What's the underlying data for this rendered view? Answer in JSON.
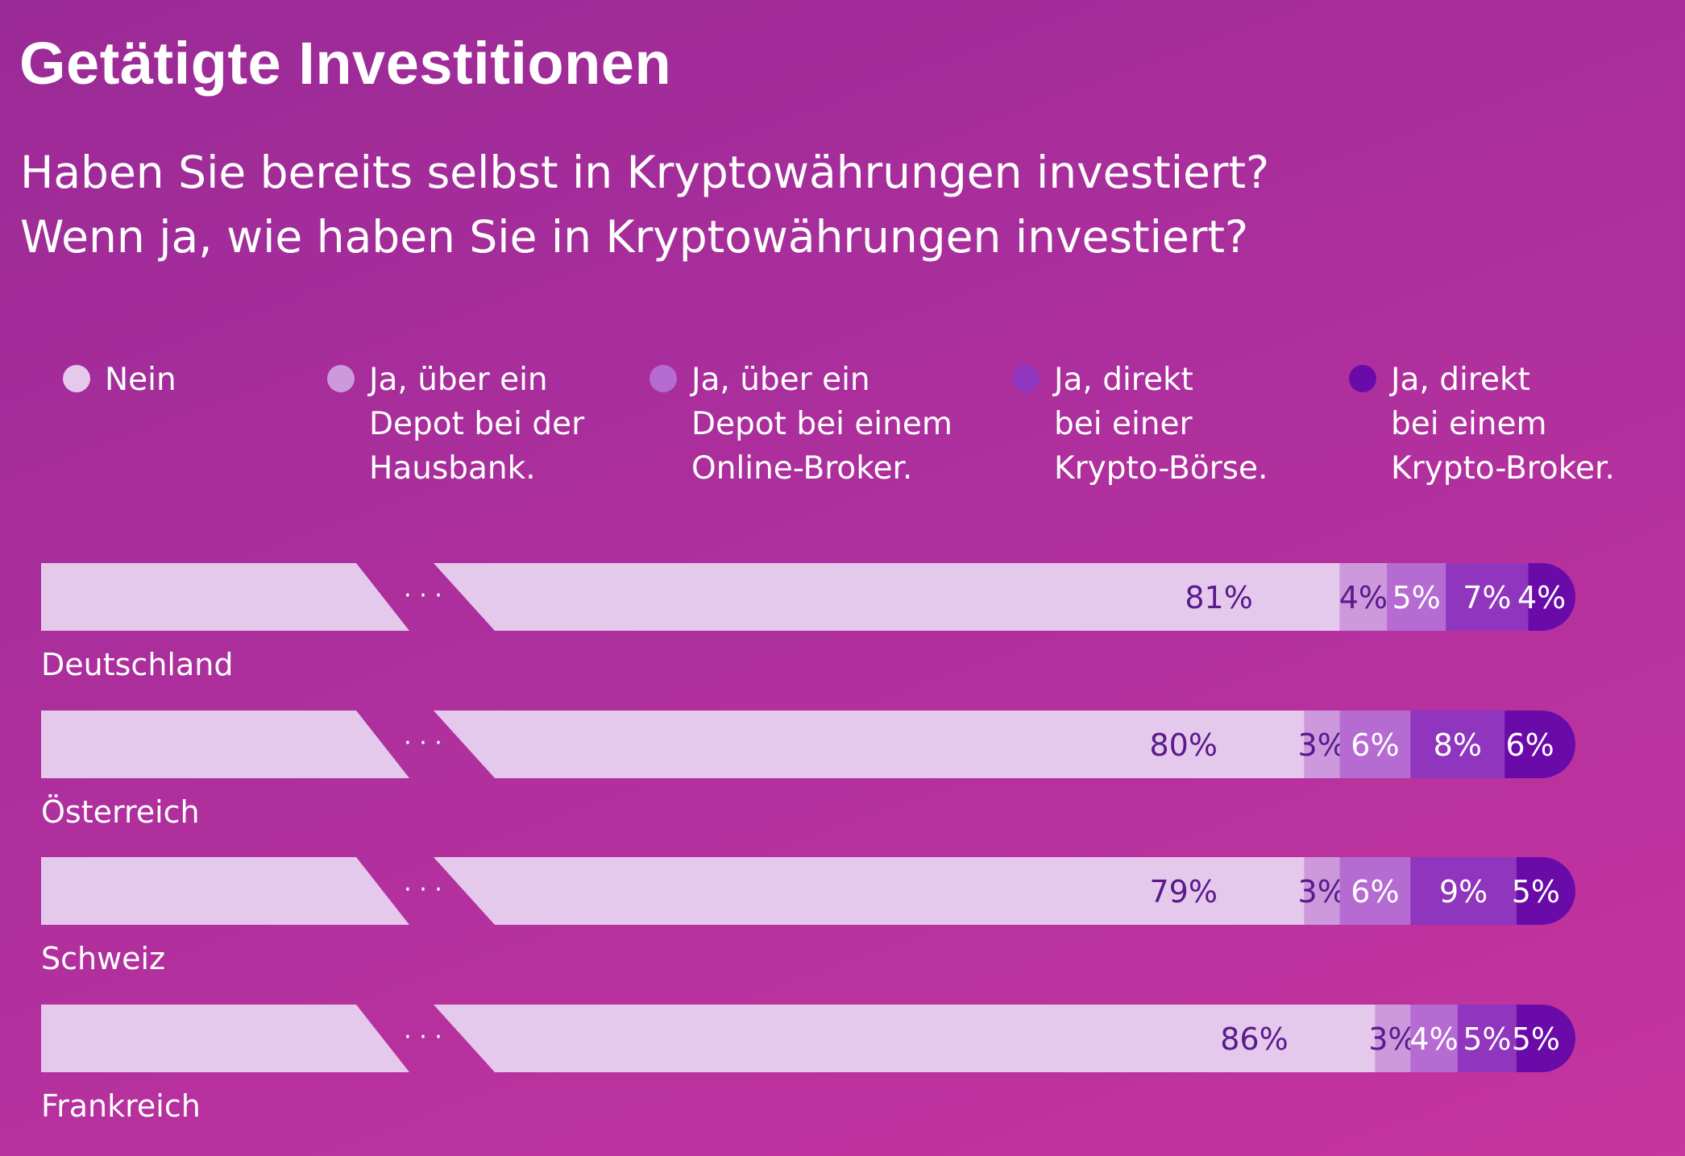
{
  "title": "Getätigte Investitionen",
  "subtitle_line1": "Haben Sie bereits selbst in Kryptowährungen investiert?",
  "subtitle_line2": "Wenn ja, wie haben Sie in Kryptowährungen investiert?",
  "legend": [
    {
      "label": "Nein",
      "color": "#e5c9ec"
    },
    {
      "label": "Ja, über ein\nDepot bei der\nHausbank.",
      "color": "#cd98dc"
    },
    {
      "label": "Ja, über ein\nDepot bei einem\nOnline-Broker.",
      "color": "#b66bd3"
    },
    {
      "label": "Ja, direkt\nbei einer\nKrypto-Börse.",
      "color": "#8f35be"
    },
    {
      "label": "Ja, direkt\nbei einem\nKrypto-Broker.",
      "color": "#6a0aa9"
    }
  ],
  "chart_data": {
    "type": "bar",
    "stacked": true,
    "horizontal": true,
    "axis_break": true,
    "unit": "%",
    "categories": [
      "Deutschland",
      "Österreich",
      "Schweiz",
      "Frankreich"
    ],
    "series": [
      {
        "name": "Nein",
        "color": "#e5c9ec",
        "label_color": "#5a1a8c",
        "values": [
          81,
          80,
          79,
          86
        ]
      },
      {
        "name": "Ja, über ein Depot bei der Hausbank.",
        "color": "#cd98dc",
        "label_color": "#5a1a8c",
        "values": [
          4,
          3,
          3,
          3
        ]
      },
      {
        "name": "Ja, über ein Depot bei einem Online-Broker.",
        "color": "#b66bd3",
        "label_color": "#ffffff",
        "values": [
          5,
          6,
          6,
          4
        ]
      },
      {
        "name": "Ja, direkt bei einer Krypto-Börse.",
        "color": "#8f35be",
        "label_color": "#ffffff",
        "values": [
          7,
          8,
          9,
          5
        ]
      },
      {
        "name": "Ja, direkt bei einem Krypto-Broker.",
        "color": "#6a0aa9",
        "label_color": "#ffffff",
        "values": [
          4,
          6,
          5,
          5
        ]
      }
    ],
    "labels": [
      [
        "81%",
        "4%",
        "5%",
        "7%",
        "4%"
      ],
      [
        "80%",
        "3%",
        "6%",
        "8%",
        "6%"
      ],
      [
        "79%",
        "3%",
        "6%",
        "9%",
        "5%"
      ],
      [
        "86%",
        "3%",
        "4%",
        "5%",
        "5%"
      ]
    ],
    "break_marker": "· · ·"
  }
}
